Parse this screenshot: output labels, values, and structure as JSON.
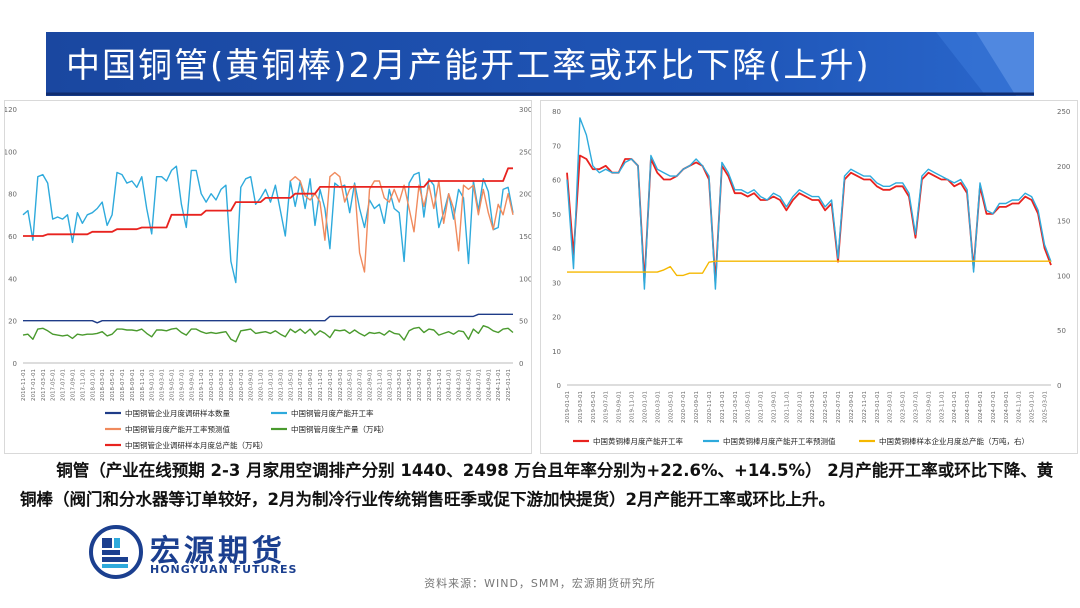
{
  "title": "中国铜管(黄铜棒)2月产能开工率或环比下降(上升)",
  "colors": {
    "title_bg": "#1f4fa8",
    "title_stripe": "#3a70d0"
  },
  "body_text": "铜管（产业在线预期 2-3 月家用空调排产分别 1440、2498 万台且年率分别为+22.6%、+14.5%） 2月产能开工率或环比下降、黄铜棒（阀门和分水器等订单较好，2月为制冷行业传统销售旺季或促下游加快提货）2月产能开工率或环比上升。",
  "logo": {
    "cn": "宏源期货",
    "en": "HONGYUAN FUTURES",
    "icon": "hongyuan-logo-icon"
  },
  "source": "资料来源：WIND，SMM，宏源期货研究所",
  "chart_data": [
    {
      "type": "line",
      "id": "copper-tube",
      "title": "",
      "x_start": "2016-11",
      "x_tick_step": 2,
      "x_count": 100,
      "ylim_left": [
        0,
        120
      ],
      "yticks_left": [
        0,
        20,
        40,
        60,
        80,
        100,
        120
      ],
      "ylim_right": [
        0,
        300
      ],
      "yticks_right": [
        0,
        50,
        100,
        150,
        200,
        250,
        300
      ],
      "legend": "bottom",
      "series": [
        {
          "name": "中国铜管企业月度调研样本数量",
          "axis": "left",
          "color": "#1f3c88",
          "values": [
            20,
            20,
            20,
            20,
            20,
            20,
            20,
            20,
            20,
            20,
            20,
            20,
            20,
            20,
            20,
            19,
            20,
            20,
            20,
            20,
            20,
            20,
            20,
            20,
            20,
            20,
            20,
            20,
            20,
            20,
            20,
            20,
            20,
            20,
            20,
            20,
            20,
            20,
            20,
            20,
            20,
            20,
            20,
            20,
            20,
            20,
            20,
            20,
            20,
            20,
            20,
            20,
            20,
            20,
            20,
            20,
            20,
            20,
            20,
            20,
            20,
            20,
            22,
            22,
            22,
            22,
            22,
            22,
            22,
            22,
            22,
            22,
            22,
            22,
            22,
            22,
            22,
            22,
            22,
            22,
            22,
            22,
            22,
            22,
            22,
            22,
            22,
            22,
            22,
            22,
            22,
            22,
            23,
            23,
            23,
            23,
            23,
            23,
            23,
            23
          ]
        },
        {
          "name": "中国铜管月度产能开工率",
          "axis": "left",
          "color": "#2eaadc",
          "values": [
            70,
            72,
            58,
            88,
            89,
            85,
            68,
            69,
            68,
            70,
            57,
            71,
            66,
            70,
            71,
            73,
            76,
            65,
            70,
            90,
            89,
            85,
            86,
            83,
            88,
            73,
            61,
            88,
            88,
            86,
            91,
            93,
            75,
            64,
            91,
            91,
            80,
            76,
            80,
            77,
            82,
            84,
            48,
            38,
            83,
            87,
            88,
            75,
            78,
            82,
            76,
            84,
            72,
            60,
            86,
            74,
            86,
            73,
            87,
            65,
            82,
            73,
            54,
            85,
            83,
            84,
            71,
            85,
            73,
            64,
            77,
            73,
            75,
            66,
            82,
            73,
            71,
            48,
            85,
            89,
            90,
            69,
            87,
            84,
            64,
            71,
            80,
            68,
            82,
            78,
            47,
            86,
            72,
            87,
            81,
            63,
            64,
            82,
            83,
            71
          ]
        },
        {
          "name": "中国铜管月度产能开工率预测值",
          "axis": "left",
          "color": "#f08a5d",
          "values": [
            null,
            null,
            null,
            null,
            null,
            null,
            null,
            null,
            null,
            null,
            null,
            null,
            null,
            null,
            null,
            null,
            null,
            null,
            null,
            null,
            null,
            null,
            null,
            null,
            null,
            null,
            null,
            null,
            null,
            null,
            null,
            null,
            null,
            null,
            null,
            null,
            null,
            null,
            null,
            null,
            null,
            null,
            null,
            null,
            null,
            null,
            null,
            null,
            null,
            null,
            null,
            null,
            null,
            null,
            86,
            88,
            86,
            79,
            77,
            80,
            76,
            58,
            88,
            90,
            88,
            76,
            82,
            84,
            52,
            43,
            82,
            86,
            86,
            78,
            76,
            82,
            76,
            84,
            73,
            62,
            84,
            74,
            84,
            73,
            86,
            66,
            80,
            73,
            53,
            84,
            82,
            84,
            70,
            82,
            71,
            63,
            75,
            70,
            80,
            70
          ]
        },
        {
          "name": "中国铜管月度生产量（万吨）",
          "axis": "right",
          "color": "#4a9a2e",
          "values": [
            33,
            34,
            28,
            40,
            41,
            38,
            34,
            33,
            32,
            33,
            29,
            34,
            33,
            34,
            34,
            35,
            37,
            32,
            34,
            40,
            40,
            39,
            39,
            38,
            40,
            35,
            31,
            39,
            39,
            38,
            40,
            41,
            36,
            33,
            40,
            40,
            37,
            35,
            36,
            35,
            36,
            37,
            28,
            25,
            38,
            39,
            40,
            35,
            36,
            37,
            35,
            38,
            34,
            31,
            40,
            36,
            40,
            35,
            40,
            33,
            38,
            35,
            30,
            39,
            38,
            39,
            35,
            39,
            35,
            32,
            36,
            35,
            36,
            33,
            38,
            35,
            34,
            27,
            38,
            41,
            42,
            36,
            40,
            39,
            33,
            35,
            37,
            34,
            38,
            37,
            28,
            40,
            35,
            44,
            42,
            38,
            36,
            40,
            41,
            36
          ]
        },
        {
          "name": "中国铜管企业调研样本月度总产能（万吨）",
          "axis": "right",
          "color": "#e8231f",
          "values": [
            150,
            150,
            150,
            150,
            150,
            152,
            152,
            152,
            152,
            152,
            152,
            152,
            152,
            152,
            155,
            155,
            155,
            155,
            155,
            158,
            158,
            158,
            158,
            158,
            160,
            160,
            160,
            160,
            160,
            160,
            175,
            175,
            175,
            175,
            175,
            175,
            175,
            180,
            180,
            180,
            180,
            180,
            180,
            190,
            190,
            190,
            190,
            190,
            190,
            195,
            195,
            195,
            195,
            195,
            195,
            200,
            200,
            200,
            200,
            200,
            208,
            208,
            208,
            208,
            208,
            208,
            208,
            208,
            208,
            208,
            208,
            208,
            208,
            208,
            208,
            208,
            208,
            208,
            208,
            208,
            208,
            208,
            215,
            215,
            215,
            215,
            215,
            215,
            215,
            215,
            215,
            215,
            215,
            215,
            215,
            215,
            215,
            215,
            230,
            230
          ]
        }
      ]
    },
    {
      "type": "line",
      "id": "brass-rod",
      "title": "",
      "x_start": "2019-01",
      "x_tick_step": 2,
      "x_count": 76,
      "ylim_left": [
        0,
        80
      ],
      "yticks_left": [
        0,
        10,
        20,
        30,
        40,
        50,
        60,
        70,
        80
      ],
      "ylim_right": [
        0,
        250
      ],
      "yticks_right": [
        0,
        50,
        100,
        150,
        200,
        250
      ],
      "legend": "bottom",
      "series": [
        {
          "name": "中国黄铜棒月度产能开工率",
          "axis": "left",
          "color": "#e8231f",
          "values": [
            62,
            38,
            67,
            66,
            63,
            63,
            64,
            62,
            62,
            66,
            66,
            64,
            30,
            66,
            62,
            60,
            60,
            61,
            63,
            64,
            65,
            64,
            60,
            30,
            64,
            61,
            56,
            56,
            55,
            56,
            54,
            54,
            55,
            54,
            51,
            54,
            56,
            55,
            54,
            54,
            51,
            53,
            36,
            60,
            62,
            61,
            60,
            60,
            58,
            57,
            57,
            58,
            58,
            55,
            43,
            60,
            62,
            61,
            60,
            60,
            58,
            59,
            56,
            34,
            58,
            50,
            50,
            52,
            52,
            53,
            53,
            55,
            54,
            50,
            40,
            35
          ]
        },
        {
          "name": "中国黄铜棒月度产能开工率预测值",
          "axis": "left",
          "color": "#2eaadc",
          "values": [
            60,
            34,
            78,
            73,
            64,
            62,
            63,
            62,
            62,
            65,
            66,
            64,
            28,
            67,
            63,
            62,
            61,
            61,
            63,
            64,
            66,
            64,
            61,
            28,
            65,
            62,
            57,
            57,
            56,
            57,
            55,
            54,
            56,
            55,
            52,
            55,
            57,
            56,
            55,
            55,
            52,
            54,
            37,
            61,
            63,
            62,
            61,
            61,
            59,
            58,
            58,
            59,
            59,
            56,
            44,
            61,
            63,
            62,
            61,
            60,
            59,
            60,
            57,
            33,
            59,
            51,
            50,
            53,
            53,
            54,
            54,
            56,
            55,
            51,
            41,
            36
          ]
        },
        {
          "name": "中国黄铜棒样本企业月度总产能（万吨，右）",
          "axis": "right",
          "color": "#f5b800",
          "values": [
            103,
            103,
            103,
            103,
            103,
            103,
            103,
            103,
            103,
            103,
            103,
            103,
            103,
            103,
            103,
            105,
            108,
            100,
            100,
            102,
            102,
            102,
            112,
            113,
            113,
            113,
            113,
            113,
            113,
            113,
            113,
            113,
            113,
            113,
            113,
            113,
            113,
            113,
            113,
            113,
            113,
            113,
            113,
            113,
            113,
            113,
            113,
            113,
            113,
            113,
            113,
            113,
            113,
            113,
            113,
            113,
            113,
            113,
            113,
            113,
            113,
            113,
            113,
            113,
            113,
            113,
            113,
            113,
            113,
            113,
            113,
            113,
            113,
            113,
            113,
            113
          ]
        }
      ]
    }
  ]
}
